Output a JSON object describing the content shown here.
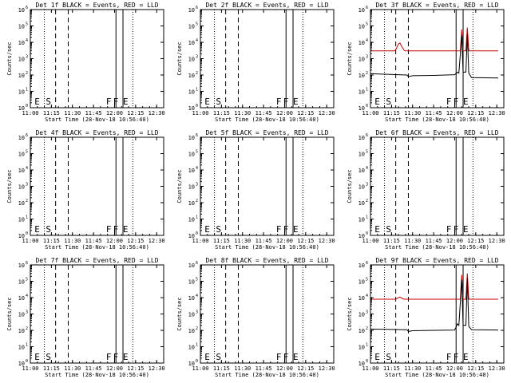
{
  "figure": {
    "x_tick_labels": [
      "11:00",
      "11:15",
      "11:30",
      "11:45",
      "12:00",
      "12:15",
      "12:30"
    ],
    "y_tick_base": "10",
    "y_tick_exponents": [
      "0",
      "1",
      "2",
      "3",
      "4",
      "5",
      "6"
    ],
    "ylabel": "Counts/sec",
    "xlabel": "Start Time (28-Nov-18 10:56:40)",
    "colors": {
      "events": "#000000",
      "lld": "#cc0000",
      "axes": "#000000"
    }
  },
  "chart_data": [
    {
      "type": "line",
      "title": "Det 1f BLACK = Events, RED = LLD",
      "xlabel": "Start Time (28-Nov-18 10:56:40)",
      "ylabel": "Counts/sec",
      "xlim": [
        "11:00",
        "12:35"
      ],
      "y_scale": "log",
      "ylim": [
        1,
        1000000
      ],
      "markers": [
        {
          "label": "E",
          "time": "11:10",
          "style": "dotted"
        },
        {
          "label": "S",
          "time": "11:18",
          "style": "dashed"
        },
        {
          "label": "",
          "time": "11:27",
          "style": "dashed"
        },
        {
          "label": "F",
          "time": "12:01",
          "style": "solid"
        },
        {
          "label": "F",
          "time": "12:06",
          "style": "solid"
        },
        {
          "label": "E",
          "time": "12:13",
          "style": "dotted"
        }
      ],
      "series": []
    },
    {
      "type": "line",
      "title": "Det 2f BLACK = Events, RED = LLD",
      "xlabel": "Start Time (28-Nov-18 10:56:40)",
      "ylabel": "Counts/sec",
      "xlim": [
        "11:00",
        "12:35"
      ],
      "y_scale": "log",
      "ylim": [
        1,
        1000000
      ],
      "markers": [
        {
          "label": "E",
          "time": "11:10",
          "style": "dotted"
        },
        {
          "label": "S",
          "time": "11:18",
          "style": "dashed"
        },
        {
          "label": "",
          "time": "11:27",
          "style": "dashed"
        },
        {
          "label": "F",
          "time": "12:01",
          "style": "solid"
        },
        {
          "label": "F",
          "time": "12:06",
          "style": "solid"
        },
        {
          "label": "E",
          "time": "12:13",
          "style": "dotted"
        }
      ],
      "series": []
    },
    {
      "type": "line",
      "title": "Det 3f BLACK = Events, RED = LLD",
      "xlabel": "Start Time (28-Nov-18 10:56:40)",
      "ylabel": "Counts/sec",
      "xlim": [
        "11:00",
        "12:35"
      ],
      "y_scale": "log",
      "ylim": [
        1,
        1000000
      ],
      "markers": [
        {
          "label": "E",
          "time": "11:10",
          "style": "dotted"
        },
        {
          "label": "S",
          "time": "11:18",
          "style": "dashed"
        },
        {
          "label": "",
          "time": "11:27",
          "style": "dashed"
        },
        {
          "label": "F",
          "time": "12:01",
          "style": "solid"
        },
        {
          "label": "F",
          "time": "12:06",
          "style": "solid"
        },
        {
          "label": "E",
          "time": "12:13",
          "style": "dotted"
        }
      ],
      "series": [
        {
          "color": "#cc0000",
          "points": [
            [
              "11:00",
              3000
            ],
            [
              "11:17",
              3000
            ],
            [
              "11:18",
              3500
            ],
            [
              "11:20",
              8000
            ],
            [
              "11:21",
              9000
            ],
            [
              "11:22",
              6000
            ],
            [
              "11:24",
              3200
            ],
            [
              "11:25",
              3000
            ],
            [
              "12:04",
              3000
            ],
            [
              "12:05",
              60000
            ],
            [
              "12:06",
              3000
            ],
            [
              "12:08",
              3000
            ],
            [
              "12:09",
              80000
            ],
            [
              "12:10",
              3000
            ],
            [
              "12:31",
              3000
            ]
          ]
        },
        {
          "color": "#000000",
          "points": [
            [
              "11:00",
              120
            ],
            [
              "11:26",
              100
            ],
            [
              "11:27",
              80
            ],
            [
              "11:30",
              90
            ],
            [
              "11:45",
              95
            ],
            [
              "12:00",
              105
            ],
            [
              "12:02",
              150
            ],
            [
              "12:03",
              130
            ],
            [
              "12:05",
              25000
            ],
            [
              "12:06",
              150
            ],
            [
              "12:08",
              150
            ],
            [
              "12:09",
              30000
            ],
            [
              "12:10",
              130
            ],
            [
              "12:12",
              70
            ],
            [
              "12:31",
              65
            ]
          ]
        }
      ]
    },
    {
      "type": "line",
      "title": "Det 4f BLACK = Events, RED = LLD",
      "xlabel": "Start Time (28-Nov-18 10:56:40)",
      "ylabel": "Counts/sec",
      "xlim": [
        "11:00",
        "12:35"
      ],
      "y_scale": "log",
      "ylim": [
        1,
        1000000
      ],
      "markers": [
        {
          "label": "E",
          "time": "11:10",
          "style": "dotted"
        },
        {
          "label": "S",
          "time": "11:18",
          "style": "dashed"
        },
        {
          "label": "",
          "time": "11:27",
          "style": "dashed"
        },
        {
          "label": "F",
          "time": "12:01",
          "style": "solid"
        },
        {
          "label": "F",
          "time": "12:06",
          "style": "solid"
        },
        {
          "label": "E",
          "time": "12:13",
          "style": "dotted"
        }
      ],
      "series": []
    },
    {
      "type": "line",
      "title": "Det 5f BLACK = Events, RED = LLD",
      "xlabel": "Start Time (28-Nov-18 10:56:40)",
      "ylabel": "Counts/sec",
      "xlim": [
        "11:00",
        "12:35"
      ],
      "y_scale": "log",
      "ylim": [
        1,
        1000000
      ],
      "markers": [
        {
          "label": "E",
          "time": "11:10",
          "style": "dotted"
        },
        {
          "label": "S",
          "time": "11:18",
          "style": "dashed"
        },
        {
          "label": "",
          "time": "11:27",
          "style": "dashed"
        },
        {
          "label": "F",
          "time": "12:01",
          "style": "solid"
        },
        {
          "label": "F",
          "time": "12:06",
          "style": "solid"
        },
        {
          "label": "E",
          "time": "12:13",
          "style": "dotted"
        }
      ],
      "series": []
    },
    {
      "type": "line",
      "title": "Det 6f BLACK = Events, RED = LLD",
      "xlabel": "Start Time (28-Nov-18 10:56:40)",
      "ylabel": "Counts/sec",
      "xlim": [
        "11:00",
        "12:35"
      ],
      "y_scale": "log",
      "ylim": [
        1,
        1000000
      ],
      "markers": [
        {
          "label": "E",
          "time": "11:10",
          "style": "dotted"
        },
        {
          "label": "S",
          "time": "11:18",
          "style": "dashed"
        },
        {
          "label": "",
          "time": "11:27",
          "style": "dashed"
        },
        {
          "label": "F",
          "time": "12:01",
          "style": "solid"
        },
        {
          "label": "F",
          "time": "12:06",
          "style": "solid"
        },
        {
          "label": "E",
          "time": "12:13",
          "style": "dotted"
        }
      ],
      "series": []
    },
    {
      "type": "line",
      "title": "Det 7f BLACK = Events, RED = LLD",
      "xlabel": "Start Time (28-Nov-18 10:56:40)",
      "ylabel": "Counts/sec",
      "xlim": [
        "11:00",
        "12:35"
      ],
      "y_scale": "log",
      "ylim": [
        1,
        1000000
      ],
      "markers": [
        {
          "label": "E",
          "time": "11:10",
          "style": "dotted"
        },
        {
          "label": "S",
          "time": "11:18",
          "style": "dashed"
        },
        {
          "label": "",
          "time": "11:27",
          "style": "dashed"
        },
        {
          "label": "F",
          "time": "12:01",
          "style": "solid"
        },
        {
          "label": "F",
          "time": "12:06",
          "style": "solid"
        },
        {
          "label": "E",
          "time": "12:13",
          "style": "dotted"
        }
      ],
      "series": []
    },
    {
      "type": "line",
      "title": "Det 8f BLACK = Events, RED = LLD",
      "xlabel": "Start Time (28-Nov-18 10:56:40)",
      "ylabel": "Counts/sec",
      "xlim": [
        "11:00",
        "12:35"
      ],
      "y_scale": "log",
      "ylim": [
        1,
        1000000
      ],
      "markers": [
        {
          "label": "E",
          "time": "11:10",
          "style": "dotted"
        },
        {
          "label": "S",
          "time": "11:18",
          "style": "dashed"
        },
        {
          "label": "",
          "time": "11:27",
          "style": "dashed"
        },
        {
          "label": "F",
          "time": "12:01",
          "style": "solid"
        },
        {
          "label": "F",
          "time": "12:06",
          "style": "solid"
        },
        {
          "label": "E",
          "time": "12:13",
          "style": "dotted"
        }
      ],
      "series": []
    },
    {
      "type": "line",
      "title": "Det 9f BLACK = Events, RED = LLD",
      "xlabel": "Start Time (28-Nov-18 10:56:40)",
      "ylabel": "Counts/sec",
      "xlim": [
        "11:00",
        "12:35"
      ],
      "y_scale": "log",
      "ylim": [
        1,
        1000000
      ],
      "markers": [
        {
          "label": "E",
          "time": "11:10",
          "style": "dotted"
        },
        {
          "label": "S",
          "time": "11:18",
          "style": "dashed"
        },
        {
          "label": "",
          "time": "11:27",
          "style": "dashed"
        },
        {
          "label": "F",
          "time": "12:01",
          "style": "solid"
        },
        {
          "label": "F",
          "time": "12:06",
          "style": "solid"
        },
        {
          "label": "E",
          "time": "12:13",
          "style": "dotted"
        }
      ],
      "series": [
        {
          "color": "#cc0000",
          "points": [
            [
              "11:00",
              8000
            ],
            [
              "11:18",
              8000
            ],
            [
              "11:20",
              10000
            ],
            [
              "11:21",
              11000
            ],
            [
              "11:22",
              9500
            ],
            [
              "11:24",
              8000
            ],
            [
              "12:04",
              8000
            ],
            [
              "12:05",
              250000
            ],
            [
              "12:06",
              8000
            ],
            [
              "12:08",
              8000
            ],
            [
              "12:09",
              300000
            ],
            [
              "12:10",
              8000
            ],
            [
              "12:31",
              8000
            ]
          ]
        },
        {
          "color": "#000000",
          "points": [
            [
              "11:00",
              120
            ],
            [
              "11:26",
              110
            ],
            [
              "11:27",
              85
            ],
            [
              "11:30",
              95
            ],
            [
              "11:45",
              100
            ],
            [
              "12:00",
              105
            ],
            [
              "12:02",
              250
            ],
            [
              "12:03",
              200
            ],
            [
              "12:05",
              120000
            ],
            [
              "12:06",
              200
            ],
            [
              "12:08",
              200
            ],
            [
              "12:09",
              150000
            ],
            [
              "12:10",
              180
            ],
            [
              "12:12",
              110
            ],
            [
              "12:31",
              105
            ]
          ]
        }
      ]
    }
  ]
}
